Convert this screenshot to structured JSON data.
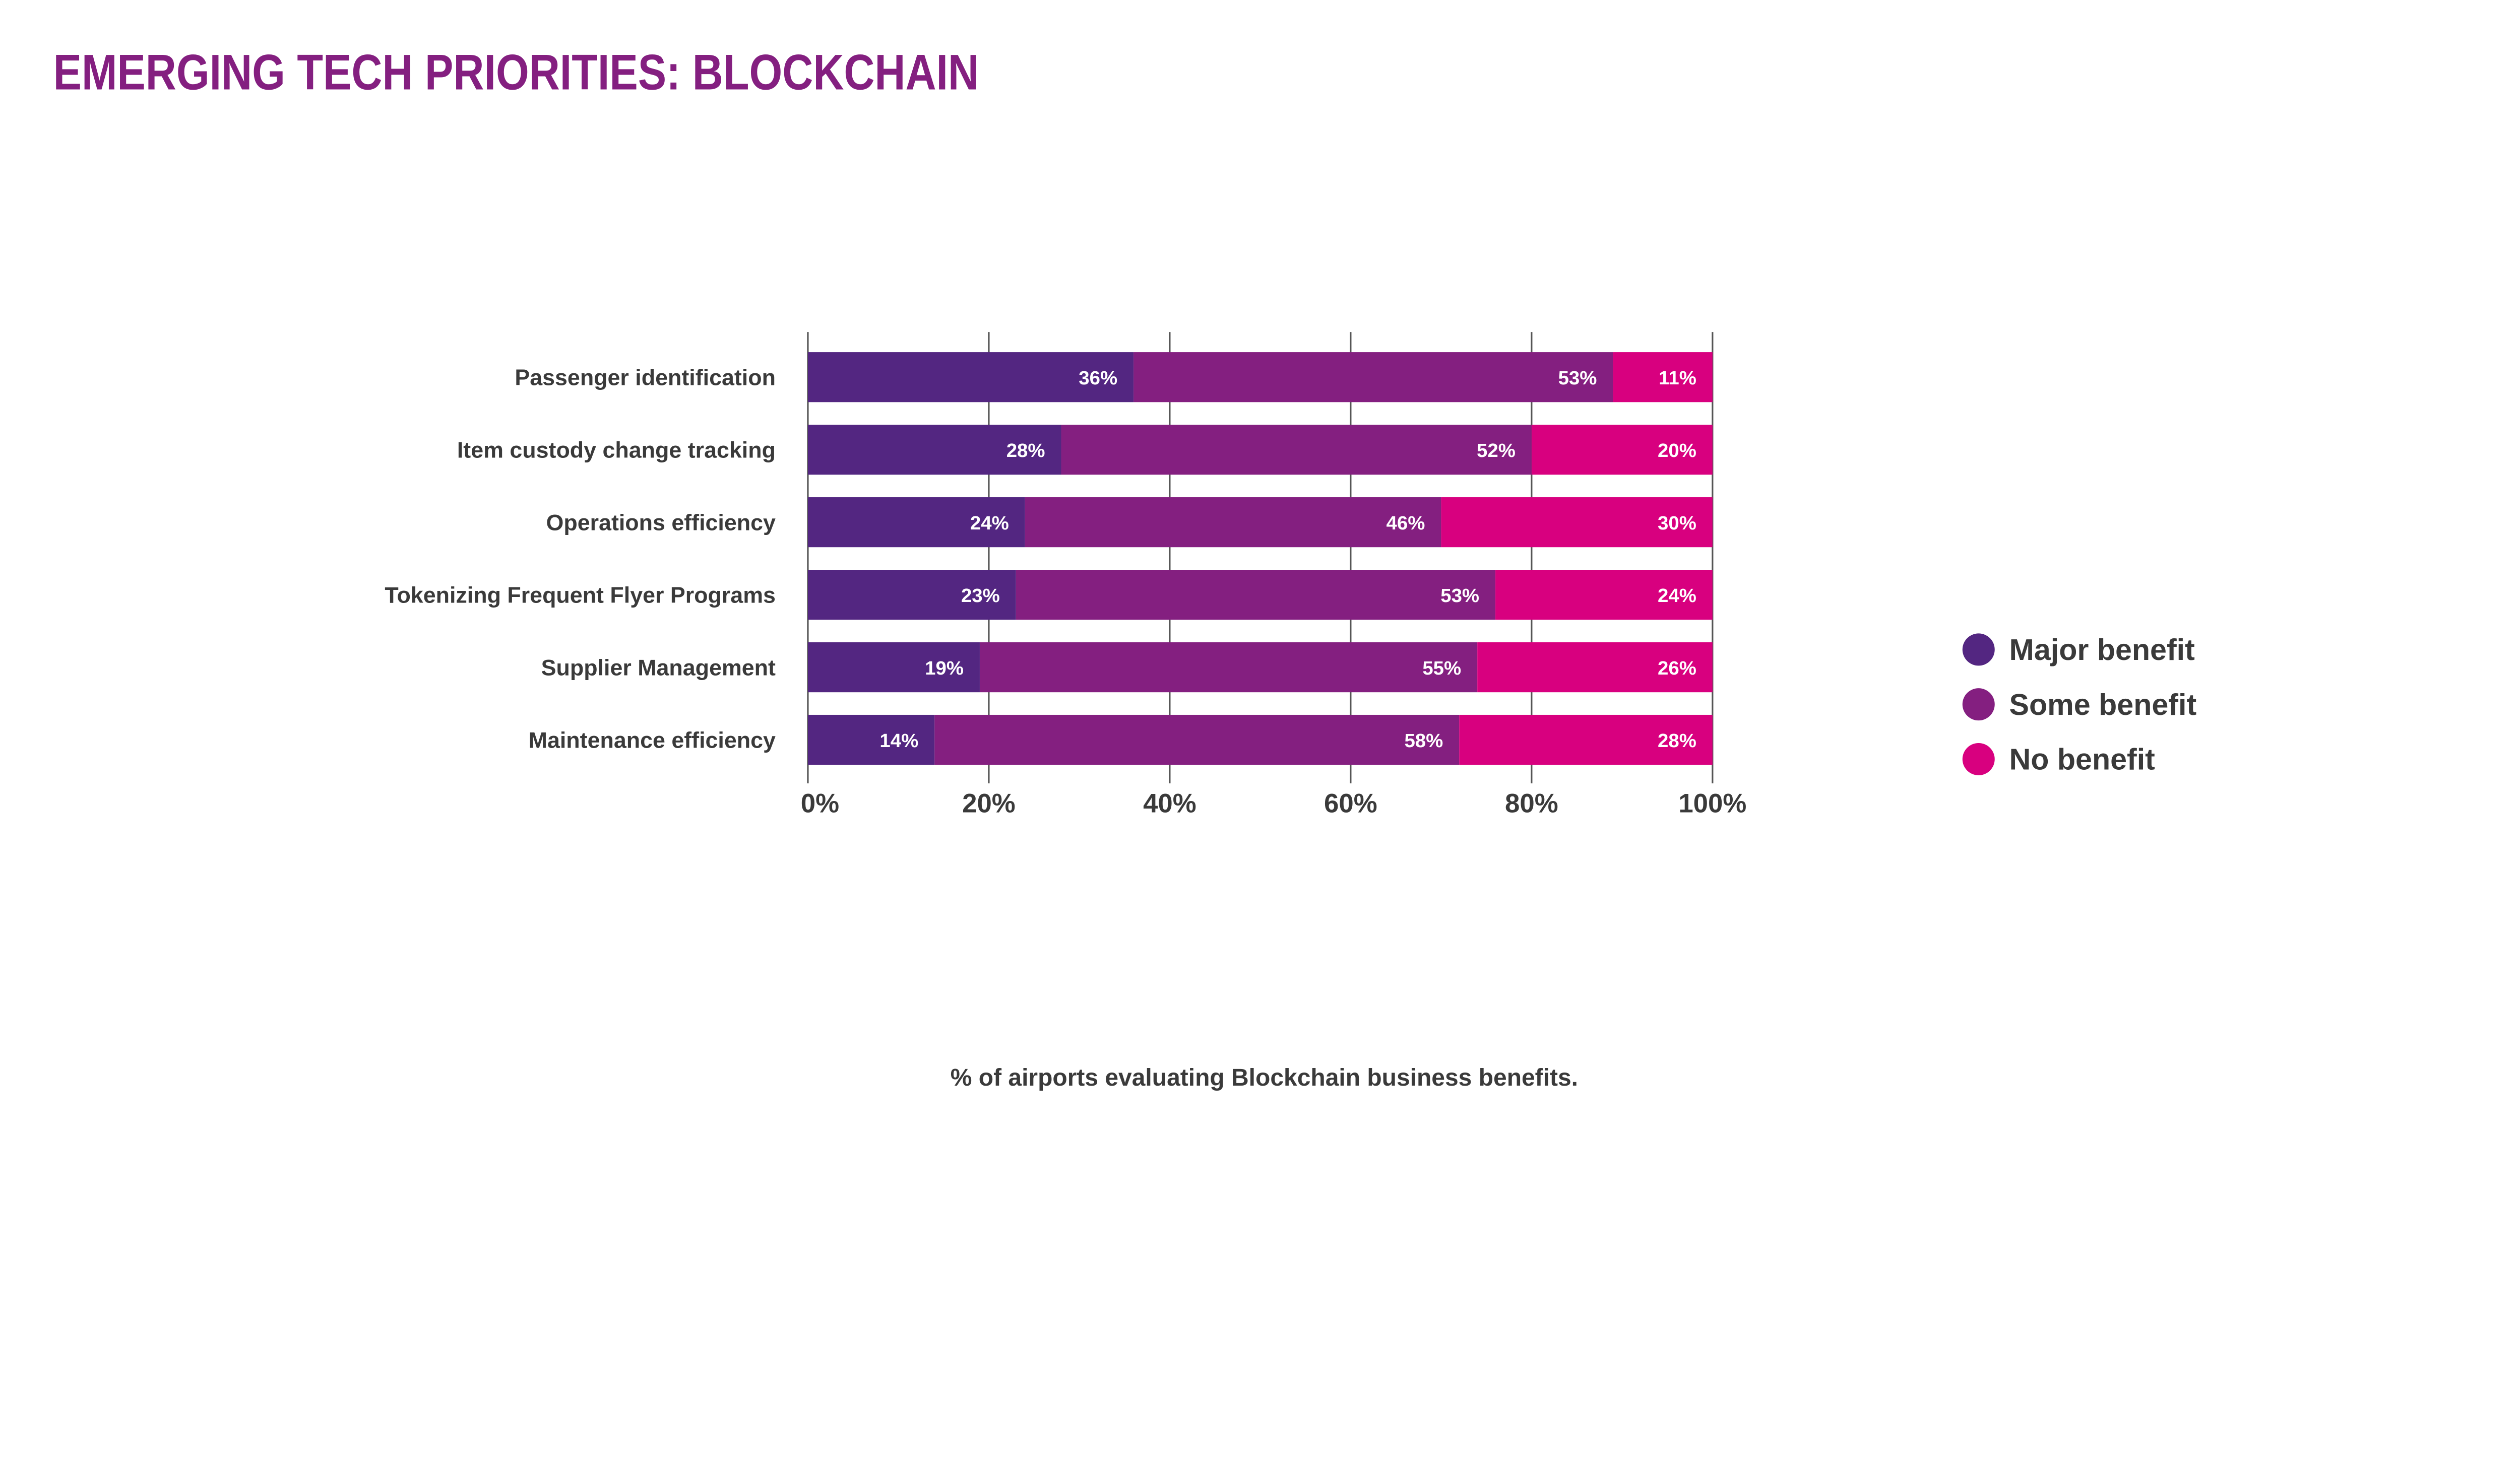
{
  "title": "EMERGING TECH PRIORITIES: BLOCKCHAIN",
  "footnote": "% of airports evaluating Blockchain business benefits.",
  "colors": {
    "title": "#841f80",
    "text": "#3a3a3a",
    "major": "#532681",
    "some": "#841f80",
    "none": "#d8007f",
    "grid": "#555555"
  },
  "chart_data": {
    "type": "bar",
    "orientation": "horizontal",
    "stacked": true,
    "title": "EMERGING TECH PRIORITIES: BLOCKCHAIN",
    "xlabel": "",
    "ylabel": "",
    "xlim": [
      0,
      100
    ],
    "grid": true,
    "legend_position": "right",
    "x_ticks": [
      "0%",
      "20%",
      "40%",
      "60%",
      "80%",
      "100%"
    ],
    "categories": [
      "Passenger identification",
      "Item custody change tracking",
      "Operations efficiency",
      "Tokenizing Frequent Flyer Programs",
      "Supplier Management",
      "Maintenance efficiency"
    ],
    "series": [
      {
        "name": "Major benefit",
        "color": "#532681",
        "values": [
          36,
          28,
          24,
          23,
          19,
          14
        ]
      },
      {
        "name": "Some benefit",
        "color": "#841f80",
        "values": [
          53,
          52,
          46,
          53,
          55,
          58
        ]
      },
      {
        "name": "No benefit",
        "color": "#d8007f",
        "values": [
          11,
          20,
          30,
          24,
          26,
          28
        ]
      }
    ]
  }
}
